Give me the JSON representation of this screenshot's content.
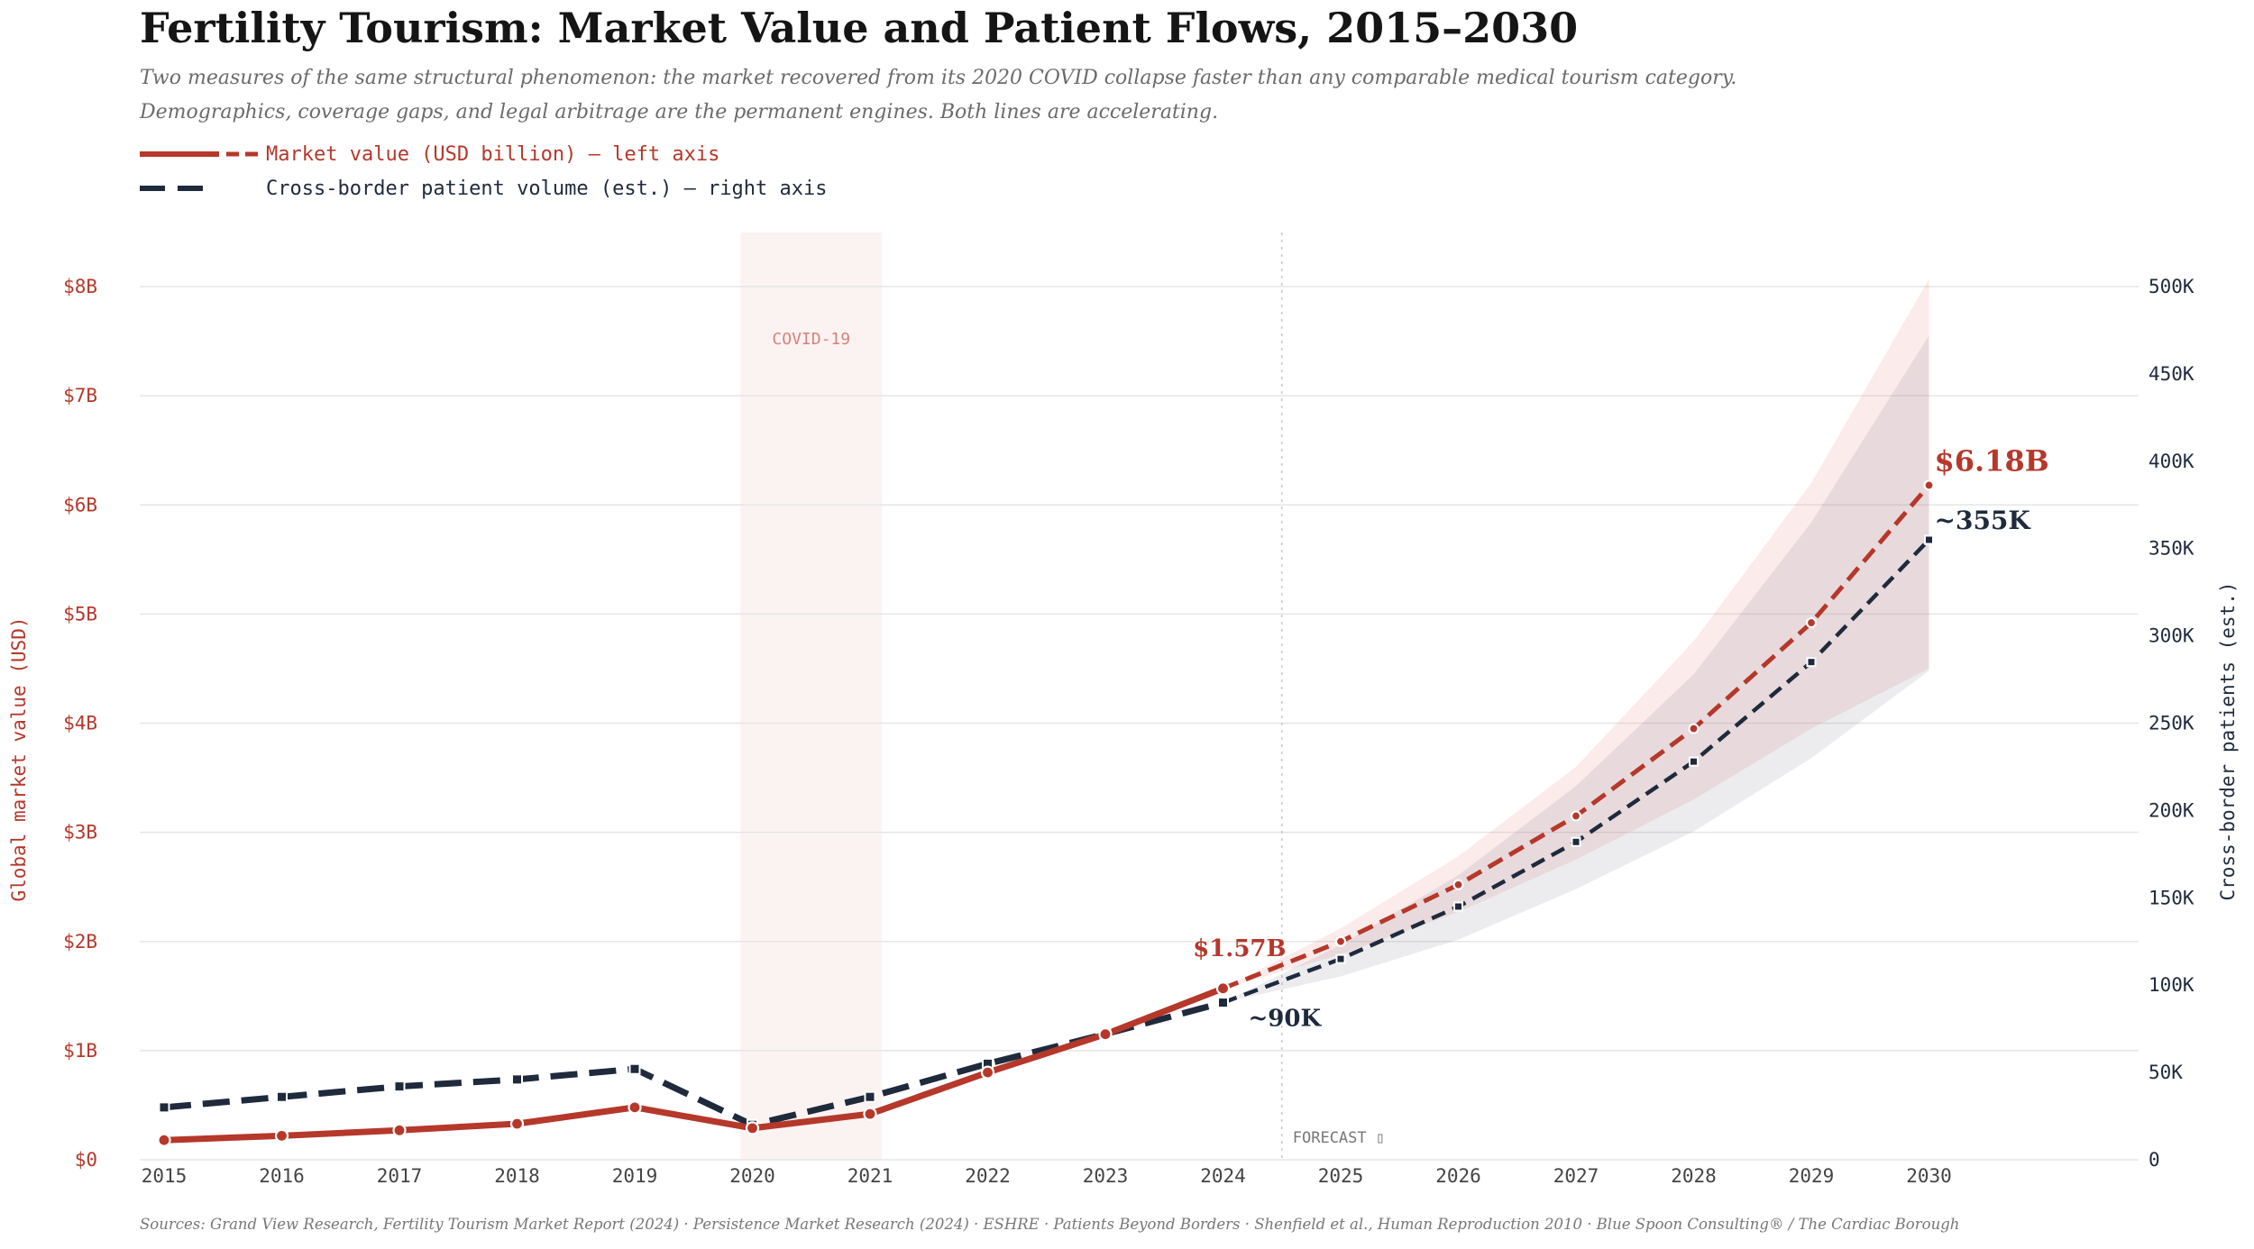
{
  "title": "Fertility Tourism: Market Value and Patient Flows, 2015–2030",
  "subtitle_lines": [
    "Two measures of the same structural phenomenon: the market recovered from its 2020 COVID collapse faster than any comparable medical tourism category.",
    "Demographics, coverage gaps, and legal arbitrage are the permanent engines. Both lines are accelerating."
  ],
  "legend": {
    "market": "Market value (USD billion) — left axis",
    "patients": "Cross-border patient volume (est.) — right axis"
  },
  "colors": {
    "market": "#b5382b",
    "patients": "#1f2a3c",
    "covid_band": "#fbf3f2",
    "grid": "#e6e6e6"
  },
  "annotations": {
    "covid": "COVID-19",
    "forecast": "FORECAST ▯",
    "market_2024": "$1.57B",
    "market_2030": "$6.18B",
    "patients_2024": "~90K",
    "patients_2030": "~355K"
  },
  "sources": "Sources: Grand View Research, Fertility Tourism Market Report (2024) · Persistence Market Research (2024) · ESHRE · Patients Beyond Borders · Shenfield et al., Human Reproduction 2010 · Blue Spoon Consulting® / The Cardiac Borough",
  "chart_data": {
    "type": "line",
    "x": [
      2015,
      2016,
      2017,
      2018,
      2019,
      2020,
      2021,
      2022,
      2023,
      2024,
      2025,
      2026,
      2027,
      2028,
      2029,
      2030
    ],
    "forecast_start": 2024.5,
    "covid_band": [
      2019.9,
      2021.1
    ],
    "left_axis": {
      "label": "Global market value (USD)",
      "range": [
        0,
        8
      ],
      "ticks": [
        0,
        1,
        2,
        3,
        4,
        5,
        6,
        7,
        8
      ],
      "tick_labels": [
        "$0",
        "$1B",
        "$2B",
        "$3B",
        "$4B",
        "$5B",
        "$6B",
        "$7B",
        "$8B"
      ]
    },
    "right_axis": {
      "label": "Cross-border patients (est.)",
      "range": [
        0,
        500000
      ],
      "ticks": [
        0,
        50000,
        100000,
        150000,
        200000,
        250000,
        300000,
        350000,
        400000,
        450000,
        500000
      ],
      "tick_labels": [
        "0",
        "50K",
        "100K",
        "150K",
        "200K",
        "250K",
        "300K",
        "350K",
        "400K",
        "450K",
        "500K"
      ]
    },
    "series": [
      {
        "axis": "left",
        "values": [
          0.18,
          0.22,
          0.27,
          0.33,
          0.48,
          0.29,
          0.42,
          0.8,
          1.15,
          1.57,
          2.0,
          2.52,
          3.15,
          3.95,
          4.92,
          6.18
        ],
        "band_upper": [
          null,
          null,
          null,
          null,
          null,
          null,
          null,
          null,
          null,
          1.57,
          2.12,
          2.78,
          3.6,
          4.75,
          6.2,
          8.07
        ],
        "band_lower": [
          null,
          null,
          null,
          null,
          null,
          null,
          null,
          null,
          null,
          1.57,
          1.88,
          2.27,
          2.75,
          3.3,
          3.95,
          4.5
        ]
      },
      {
        "axis": "right",
        "values": [
          30000,
          36000,
          42000,
          46000,
          52000,
          20000,
          36000,
          55000,
          72000,
          90000,
          115000,
          145000,
          182000,
          228000,
          285000,
          355000
        ],
        "band_upper": [
          null,
          null,
          null,
          null,
          null,
          null,
          null,
          null,
          null,
          90000,
          123000,
          163000,
          214000,
          278000,
          365000,
          472000
        ],
        "band_lower": [
          null,
          null,
          null,
          null,
          null,
          null,
          null,
          null,
          null,
          90000,
          105000,
          126000,
          155000,
          188000,
          230000,
          280000
        ]
      }
    ],
    "grid": true,
    "legend_position": "top-left"
  }
}
